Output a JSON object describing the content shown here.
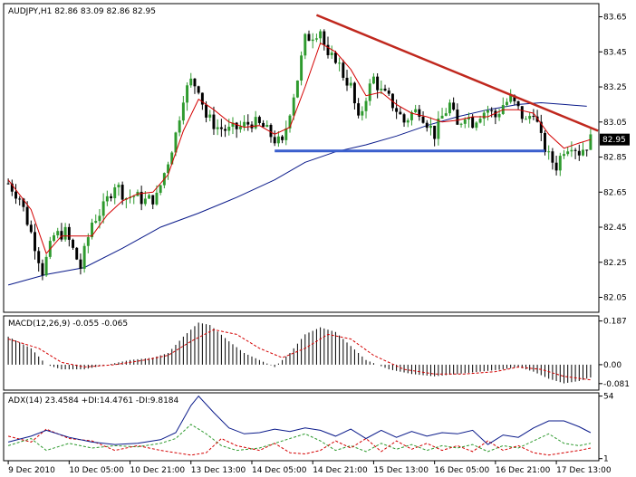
{
  "colors": {
    "background": "#ffffff",
    "frame": "#000000",
    "bull_candle": "#2e9a2e",
    "bear_candle": "#000000",
    "fast_ma": "#d40000",
    "slow_ma": "#0a1a8a",
    "trendline_resistance": "#c0281e",
    "trendline_support": "#3a5fcd",
    "macd_histogram": "#000000",
    "macd_signal": "#d40000",
    "adx_main": "#0a1a8a",
    "plus_di": "#2e9a2e",
    "minus_di": "#d40000",
    "price_badge_bg": "#000000",
    "price_badge_fg": "#ffffff"
  },
  "chart_data": [
    {
      "type": "candlestick",
      "title": "AUDJPY,H1  82.86 83.09 82.86 82.95",
      "ylim": [
        81.97,
        83.72
      ],
      "y_ticks": [
        "83.65",
        "83.45",
        "83.25",
        "83.05",
        "82.85",
        "82.65",
        "82.45",
        "82.25",
        "82.05"
      ],
      "current_price": "82.95",
      "x_ticks": [
        "9 Dec 2010",
        "10 Dec 05:00",
        "10 Dec 21:00",
        "13 Dec 13:00",
        "14 Dec 05:00",
        "14 Dec 21:00",
        "15 Dec 13:00",
        "16 Dec 05:00",
        "16 Dec 21:00",
        "17 Dec 13:00"
      ],
      "x_tick_bars": [
        0,
        16,
        32,
        48,
        64,
        80,
        96,
        112,
        128,
        144
      ],
      "bar_count": 154,
      "close_keypoints": [
        [
          0,
          82.7
        ],
        [
          3,
          82.62
        ],
        [
          7,
          82.35
        ],
        [
          9,
          82.2
        ],
        [
          12,
          82.4
        ],
        [
          15,
          82.42
        ],
        [
          19,
          82.22
        ],
        [
          22,
          82.48
        ],
        [
          25,
          82.56
        ],
        [
          28,
          82.7
        ],
        [
          31,
          82.62
        ],
        [
          33,
          82.63
        ],
        [
          36,
          82.6
        ],
        [
          39,
          82.62
        ],
        [
          42,
          82.83
        ],
        [
          44,
          82.98
        ],
        [
          46,
          83.2
        ],
        [
          48,
          83.28
        ],
        [
          50,
          83.25
        ],
        [
          52,
          83.08
        ],
        [
          55,
          83.02
        ],
        [
          58,
          83.0
        ],
        [
          61,
          83.02
        ],
        [
          64,
          83.05
        ],
        [
          67,
          83.02
        ],
        [
          70,
          82.95
        ],
        [
          72,
          82.92
        ],
        [
          74,
          83.12
        ],
        [
          76,
          83.3
        ],
        [
          78,
          83.52
        ],
        [
          80,
          83.55
        ],
        [
          82,
          83.58
        ],
        [
          84,
          83.4
        ],
        [
          86,
          83.42
        ],
        [
          88,
          83.32
        ],
        [
          90,
          83.25
        ],
        [
          92,
          83.05
        ],
        [
          94,
          83.2
        ],
        [
          96,
          83.3
        ],
        [
          98,
          83.22
        ],
        [
          100,
          83.18
        ],
        [
          102,
          83.12
        ],
        [
          104,
          83.05
        ],
        [
          106,
          83.1
        ],
        [
          108,
          83.12
        ],
        [
          110,
          83.05
        ],
        [
          112,
          82.98
        ],
        [
          114,
          83.08
        ],
        [
          116,
          83.15
        ],
        [
          118,
          83.02
        ],
        [
          120,
          83.1
        ],
        [
          122,
          83.05
        ],
        [
          124,
          83.1
        ],
        [
          126,
          83.12
        ],
        [
          128,
          83.08
        ],
        [
          130,
          83.15
        ],
        [
          132,
          83.18
        ],
        [
          134,
          83.12
        ],
        [
          136,
          83.05
        ],
        [
          138,
          83.12
        ],
        [
          140,
          82.95
        ],
        [
          142,
          82.85
        ],
        [
          144,
          82.8
        ],
        [
          146,
          82.9
        ],
        [
          148,
          82.93
        ],
        [
          150,
          82.88
        ],
        [
          152,
          82.92
        ],
        [
          153,
          82.95
        ]
      ],
      "fast_ma": [
        [
          0,
          82.72
        ],
        [
          6,
          82.55
        ],
        [
          10,
          82.3
        ],
        [
          14,
          82.4
        ],
        [
          18,
          82.4
        ],
        [
          22,
          82.4
        ],
        [
          26,
          82.52
        ],
        [
          30,
          82.6
        ],
        [
          34,
          82.64
        ],
        [
          38,
          82.65
        ],
        [
          42,
          82.75
        ],
        [
          46,
          83.0
        ],
        [
          50,
          83.18
        ],
        [
          54,
          83.12
        ],
        [
          58,
          83.05
        ],
        [
          62,
          83.02
        ],
        [
          66,
          83.03
        ],
        [
          70,
          82.98
        ],
        [
          74,
          83.02
        ],
        [
          78,
          83.25
        ],
        [
          82,
          83.5
        ],
        [
          86,
          83.45
        ],
        [
          90,
          83.35
        ],
        [
          94,
          83.2
        ],
        [
          98,
          83.22
        ],
        [
          102,
          83.15
        ],
        [
          106,
          83.1
        ],
        [
          110,
          83.08
        ],
        [
          114,
          83.05
        ],
        [
          118,
          83.06
        ],
        [
          122,
          83.08
        ],
        [
          126,
          83.08
        ],
        [
          130,
          83.12
        ],
        [
          134,
          83.12
        ],
        [
          138,
          83.1
        ],
        [
          142,
          82.98
        ],
        [
          146,
          82.9
        ],
        [
          150,
          82.93
        ],
        [
          153,
          82.95
        ]
      ],
      "slow_ma": [
        [
          0,
          82.12
        ],
        [
          10,
          82.18
        ],
        [
          20,
          82.22
        ],
        [
          30,
          82.33
        ],
        [
          40,
          82.45
        ],
        [
          50,
          82.53
        ],
        [
          60,
          82.62
        ],
        [
          70,
          82.72
        ],
        [
          78,
          82.82
        ],
        [
          86,
          82.88
        ],
        [
          94,
          82.92
        ],
        [
          102,
          82.97
        ],
        [
          110,
          83.03
        ],
        [
          118,
          83.08
        ],
        [
          126,
          83.12
        ],
        [
          134,
          83.15
        ],
        [
          140,
          83.16
        ],
        [
          146,
          83.15
        ],
        [
          152,
          83.14
        ]
      ],
      "resistance_trendline": [
        [
          81,
          83.66
        ],
        [
          154,
          83.0
        ]
      ],
      "support_trendline": [
        [
          70,
          82.885
        ],
        [
          141,
          82.885
        ]
      ]
    },
    {
      "type": "bar",
      "title": "MACD(12,26,9) -0.055 -0.065",
      "ylim": [
        -0.105,
        0.205
      ],
      "y_ticks": [
        "0.187",
        "0.00",
        "-0.081"
      ],
      "histogram": [
        [
          0,
          0.12
        ],
        [
          6,
          0.07
        ],
        [
          10,
          0.0
        ],
        [
          14,
          -0.02
        ],
        [
          20,
          -0.02
        ],
        [
          26,
          0.0
        ],
        [
          32,
          0.02
        ],
        [
          38,
          0.03
        ],
        [
          42,
          0.05
        ],
        [
          46,
          0.12
        ],
        [
          50,
          0.18
        ],
        [
          53,
          0.17
        ],
        [
          58,
          0.1
        ],
        [
          62,
          0.05
        ],
        [
          66,
          0.02
        ],
        [
          70,
          -0.01
        ],
        [
          74,
          0.05
        ],
        [
          78,
          0.13
        ],
        [
          82,
          0.16
        ],
        [
          86,
          0.14
        ],
        [
          90,
          0.08
        ],
        [
          94,
          0.02
        ],
        [
          100,
          -0.02
        ],
        [
          106,
          -0.04
        ],
        [
          112,
          -0.05
        ],
        [
          118,
          -0.04
        ],
        [
          124,
          -0.03
        ],
        [
          130,
          -0.02
        ],
        [
          134,
          -0.01
        ],
        [
          138,
          -0.03
        ],
        [
          142,
          -0.06
        ],
        [
          146,
          -0.08
        ],
        [
          150,
          -0.07
        ],
        [
          153,
          -0.055
        ]
      ],
      "signal": [
        [
          0,
          0.11
        ],
        [
          8,
          0.07
        ],
        [
          14,
          0.01
        ],
        [
          20,
          -0.01
        ],
        [
          28,
          0.0
        ],
        [
          36,
          0.02
        ],
        [
          42,
          0.04
        ],
        [
          48,
          0.1
        ],
        [
          54,
          0.15
        ],
        [
          60,
          0.13
        ],
        [
          66,
          0.07
        ],
        [
          72,
          0.03
        ],
        [
          78,
          0.07
        ],
        [
          84,
          0.13
        ],
        [
          90,
          0.11
        ],
        [
          96,
          0.04
        ],
        [
          104,
          -0.02
        ],
        [
          112,
          -0.04
        ],
        [
          120,
          -0.04
        ],
        [
          128,
          -0.03
        ],
        [
          134,
          -0.01
        ],
        [
          140,
          -0.02
        ],
        [
          146,
          -0.05
        ],
        [
          153,
          -0.065
        ]
      ]
    },
    {
      "type": "line",
      "title": "ADX(14) 23.4584 +DI:14.4761 -DI:9.8184",
      "ylim": [
        0,
        56
      ],
      "y_ticks": [
        "54",
        "1"
      ],
      "adx": [
        [
          0,
          15
        ],
        [
          6,
          20
        ],
        [
          10,
          25
        ],
        [
          16,
          19
        ],
        [
          22,
          15
        ],
        [
          28,
          13
        ],
        [
          34,
          14
        ],
        [
          40,
          17
        ],
        [
          44,
          23
        ],
        [
          48,
          46
        ],
        [
          50,
          54
        ],
        [
          54,
          40
        ],
        [
          58,
          27
        ],
        [
          62,
          22
        ],
        [
          66,
          23
        ],
        [
          70,
          26
        ],
        [
          74,
          24
        ],
        [
          78,
          27
        ],
        [
          82,
          25
        ],
        [
          86,
          20
        ],
        [
          90,
          26
        ],
        [
          94,
          18
        ],
        [
          98,
          25
        ],
        [
          102,
          19
        ],
        [
          106,
          24
        ],
        [
          110,
          20
        ],
        [
          114,
          23
        ],
        [
          118,
          22
        ],
        [
          122,
          25
        ],
        [
          126,
          13
        ],
        [
          130,
          21
        ],
        [
          134,
          19
        ],
        [
          138,
          27
        ],
        [
          142,
          33
        ],
        [
          146,
          33
        ],
        [
          150,
          28
        ],
        [
          153,
          23
        ]
      ],
      "plus_di": [
        [
          0,
          12
        ],
        [
          6,
          18
        ],
        [
          10,
          8
        ],
        [
          16,
          14
        ],
        [
          22,
          10
        ],
        [
          28,
          12
        ],
        [
          34,
          11
        ],
        [
          40,
          14
        ],
        [
          44,
          18
        ],
        [
          48,
          30
        ],
        [
          52,
          22
        ],
        [
          56,
          12
        ],
        [
          60,
          8
        ],
        [
          66,
          10
        ],
        [
          70,
          14
        ],
        [
          74,
          18
        ],
        [
          78,
          22
        ],
        [
          82,
          16
        ],
        [
          86,
          8
        ],
        [
          90,
          12
        ],
        [
          94,
          7
        ],
        [
          98,
          14
        ],
        [
          102,
          9
        ],
        [
          106,
          13
        ],
        [
          110,
          8
        ],
        [
          114,
          12
        ],
        [
          118,
          10
        ],
        [
          122,
          13
        ],
        [
          126,
          7
        ],
        [
          130,
          12
        ],
        [
          134,
          10
        ],
        [
          138,
          16
        ],
        [
          142,
          22
        ],
        [
          146,
          14
        ],
        [
          150,
          12
        ],
        [
          153,
          14
        ]
      ],
      "minus_di": [
        [
          0,
          20
        ],
        [
          6,
          15
        ],
        [
          10,
          26
        ],
        [
          16,
          18
        ],
        [
          22,
          16
        ],
        [
          28,
          8
        ],
        [
          34,
          12
        ],
        [
          40,
          8
        ],
        [
          44,
          6
        ],
        [
          48,
          4
        ],
        [
          52,
          6
        ],
        [
          56,
          18
        ],
        [
          60,
          12
        ],
        [
          66,
          8
        ],
        [
          70,
          14
        ],
        [
          74,
          6
        ],
        [
          78,
          5
        ],
        [
          82,
          8
        ],
        [
          86,
          16
        ],
        [
          90,
          10
        ],
        [
          94,
          18
        ],
        [
          98,
          7
        ],
        [
          102,
          16
        ],
        [
          106,
          9
        ],
        [
          110,
          14
        ],
        [
          114,
          8
        ],
        [
          118,
          12
        ],
        [
          122,
          7
        ],
        [
          126,
          16
        ],
        [
          130,
          8
        ],
        [
          134,
          12
        ],
        [
          138,
          6
        ],
        [
          142,
          4
        ],
        [
          146,
          6
        ],
        [
          150,
          8
        ],
        [
          153,
          10
        ]
      ]
    }
  ]
}
